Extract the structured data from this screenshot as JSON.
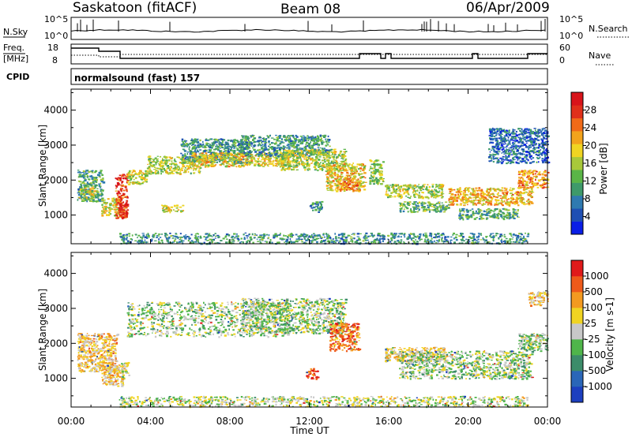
{
  "header": {
    "station": "Saskatoon (fitACF)",
    "beam": "Beam 08",
    "date": "06/Apr/2009"
  },
  "info_panels": {
    "nsky_label": "N.Sky",
    "nsky_ticks": [
      "10^5",
      "10^0"
    ],
    "nsearch_label": "N.Search",
    "nsearch_ticks": [
      "10^5",
      "10^0"
    ],
    "freq_label_line1": "Freq.",
    "freq_label_line2": "[MHz]",
    "freq_ticks": [
      "18",
      "8"
    ],
    "nave_label": "Nave",
    "nave_ticks": [
      "60",
      "0"
    ],
    "cpid_label": "CPID",
    "cpid_text": "normalsound (fast) 157"
  },
  "chart_data": [
    {
      "type": "heatmap",
      "panel": "power",
      "title": "",
      "xlabel": "Time UT",
      "ylabel": "Slant Range [km]",
      "xlim": [
        "00:00",
        "24:00"
      ],
      "ylim": [
        180,
        4600
      ],
      "x_ticks": [
        "00:00",
        "04:00",
        "08:00",
        "12:00",
        "16:00",
        "20:00",
        "00:00"
      ],
      "y_ticks": [
        "1000",
        "2000",
        "3000",
        "4000"
      ],
      "colorbar": {
        "label": "Power [dB]",
        "ticks": [
          "4",
          "8",
          "12",
          "16",
          "20",
          "24",
          "28"
        ],
        "colors": [
          "#0a1ee6",
          "#1f4fb3",
          "#2f7ab0",
          "#3e9a6a",
          "#5ab547",
          "#a8c83a",
          "#f0d422",
          "#f2a31c",
          "#f06a18",
          "#e0301a",
          "#d8141a"
        ]
      },
      "regions": [
        {
          "t0": 0.3,
          "t1": 1.6,
          "r0": 1400,
          "r1": 2300,
          "level": 0.35
        },
        {
          "t0": 0.4,
          "t1": 1.2,
          "r0": 1500,
          "r1": 1800,
          "level": 0.55
        },
        {
          "t0": 1.5,
          "t1": 2.4,
          "r0": 1000,
          "r1": 1500,
          "level": 0.55
        },
        {
          "t0": 2.2,
          "t1": 2.8,
          "r0": 900,
          "r1": 2200,
          "level": 0.85
        },
        {
          "t0": 2.4,
          "t1": 2.8,
          "r0": 1000,
          "r1": 1400,
          "level": 0.95
        },
        {
          "t0": 2.8,
          "t1": 3.8,
          "r0": 1900,
          "r1": 2300,
          "level": 0.55
        },
        {
          "t0": 3.8,
          "t1": 6.5,
          "r0": 2200,
          "r1": 2700,
          "level": 0.5
        },
        {
          "t0": 4.5,
          "t1": 5.6,
          "r0": 1100,
          "r1": 1300,
          "level": 0.55
        },
        {
          "t0": 5.5,
          "t1": 9.0,
          "r0": 2500,
          "r1": 3200,
          "level": 0.3
        },
        {
          "t0": 6.0,
          "t1": 11.0,
          "r0": 2400,
          "r1": 2800,
          "level": 0.6
        },
        {
          "t0": 8.5,
          "t1": 13.0,
          "r0": 2700,
          "r1": 3300,
          "level": 0.3
        },
        {
          "t0": 10.5,
          "t1": 13.8,
          "r0": 2300,
          "r1": 2900,
          "level": 0.5
        },
        {
          "t0": 12.8,
          "t1": 14.8,
          "r0": 1700,
          "r1": 2500,
          "level": 0.6
        },
        {
          "t0": 13.5,
          "t1": 14.5,
          "r0": 1700,
          "r1": 2100,
          "level": 0.75
        },
        {
          "t0": 12.0,
          "t1": 12.6,
          "r0": 1100,
          "r1": 1400,
          "level": 0.3
        },
        {
          "t0": 15.0,
          "t1": 15.7,
          "r0": 1900,
          "r1": 2600,
          "level": 0.45
        },
        {
          "t0": 15.8,
          "t1": 18.7,
          "r0": 1500,
          "r1": 1900,
          "level": 0.5
        },
        {
          "t0": 16.5,
          "t1": 19.0,
          "r0": 1100,
          "r1": 1400,
          "level": 0.4
        },
        {
          "t0": 19.0,
          "t1": 23.2,
          "r0": 1300,
          "r1": 1800,
          "level": 0.65
        },
        {
          "t0": 19.5,
          "t1": 22.5,
          "r0": 900,
          "r1": 1200,
          "level": 0.35
        },
        {
          "t0": 22.5,
          "t1": 24.0,
          "r0": 1800,
          "r1": 2300,
          "level": 0.7
        },
        {
          "t0": 21.0,
          "t1": 24.0,
          "r0": 2500,
          "r1": 3500,
          "level": 0.2
        },
        {
          "t0": 2.4,
          "t1": 23.0,
          "r0": 200,
          "r1": 500,
          "level": 0.3
        }
      ]
    },
    {
      "type": "heatmap",
      "panel": "velocity",
      "title": "",
      "xlabel": "Time UT",
      "ylabel": "Slant Range [km]",
      "xlim": [
        "00:00",
        "24:00"
      ],
      "ylim": [
        180,
        4600
      ],
      "x_ticks": [
        "00:00",
        "04:00",
        "08:00",
        "12:00",
        "16:00",
        "20:00",
        "00:00"
      ],
      "y_ticks": [
        "1000",
        "2000",
        "3000",
        "4000"
      ],
      "colorbar": {
        "label": "Velocity [m s-1]",
        "ticks": [
          "1000",
          "500",
          "100",
          "25",
          "-25",
          "-100",
          "-500",
          "-1000"
        ],
        "colors": [
          "#1d3fbf",
          "#2a66b8",
          "#3c8c6a",
          "#4fb54a",
          "#c8c8c8",
          "#f0d422",
          "#f39a20",
          "#ee5a1a",
          "#e01a1a"
        ]
      },
      "regions": [
        {
          "t0": 0.3,
          "t1": 2.3,
          "r0": 1200,
          "r1": 2300,
          "level": 0.62
        },
        {
          "t0": 1.5,
          "t1": 2.6,
          "r0": 800,
          "r1": 1400,
          "level": 0.62
        },
        {
          "t0": 2.5,
          "t1": 2.9,
          "r0": 1000,
          "r1": 1500,
          "level": 0.55
        },
        {
          "t0": 2.8,
          "t1": 11.0,
          "r0": 2200,
          "r1": 3200,
          "level": 0.45
        },
        {
          "t0": 8.5,
          "t1": 13.8,
          "r0": 2300,
          "r1": 3300,
          "level": 0.45
        },
        {
          "t0": 13.0,
          "t1": 14.5,
          "r0": 1800,
          "r1": 2600,
          "level": 0.8
        },
        {
          "t0": 11.8,
          "t1": 12.4,
          "r0": 1000,
          "r1": 1300,
          "level": 0.82
        },
        {
          "t0": 15.8,
          "t1": 18.8,
          "r0": 1500,
          "r1": 1900,
          "level": 0.6
        },
        {
          "t0": 16.5,
          "t1": 23.2,
          "r0": 1000,
          "r1": 1800,
          "level": 0.45
        },
        {
          "t0": 22.5,
          "t1": 24.0,
          "r0": 1800,
          "r1": 2300,
          "level": 0.45
        },
        {
          "t0": 23.0,
          "t1": 24.0,
          "r0": 3100,
          "r1": 3500,
          "level": 0.62
        },
        {
          "t0": 2.4,
          "t1": 23.0,
          "r0": 200,
          "r1": 500,
          "level": 0.5
        }
      ]
    }
  ]
}
